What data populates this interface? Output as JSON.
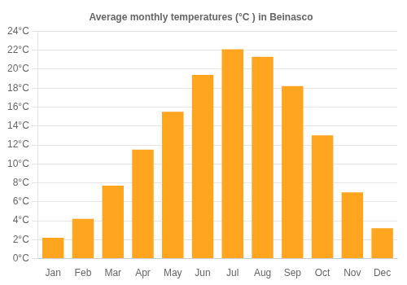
{
  "chart_data": {
    "type": "bar",
    "title": "Average monthly temperatures (°C ) in Beinasco",
    "categories": [
      "Jan",
      "Feb",
      "Mar",
      "Apr",
      "May",
      "Jun",
      "Jul",
      "Aug",
      "Sep",
      "Oct",
      "Nov",
      "Dec"
    ],
    "values": [
      2.2,
      4.2,
      7.7,
      11.5,
      15.5,
      19.4,
      22.1,
      21.3,
      18.2,
      13.0,
      7.0,
      3.2
    ],
    "color": "#FFA520",
    "ylim": [
      0,
      24
    ],
    "yticks": [
      {
        "value": 0,
        "label": "0°C"
      },
      {
        "value": 2,
        "label": "2°C"
      },
      {
        "value": 4,
        "label": "4°C"
      },
      {
        "value": 6,
        "label": "6°C"
      },
      {
        "value": 8,
        "label": "8°C"
      },
      {
        "value": 10,
        "label": "10°C"
      },
      {
        "value": 12,
        "label": "12°C"
      },
      {
        "value": 14,
        "label": "14°C"
      },
      {
        "value": 16,
        "label": "16°C"
      },
      {
        "value": 18,
        "label": "18°C"
      },
      {
        "value": 20,
        "label": "20°C"
      },
      {
        "value": 22,
        "label": "22°C"
      },
      {
        "value": 24,
        "label": "24°C"
      }
    ],
    "grid": true
  }
}
